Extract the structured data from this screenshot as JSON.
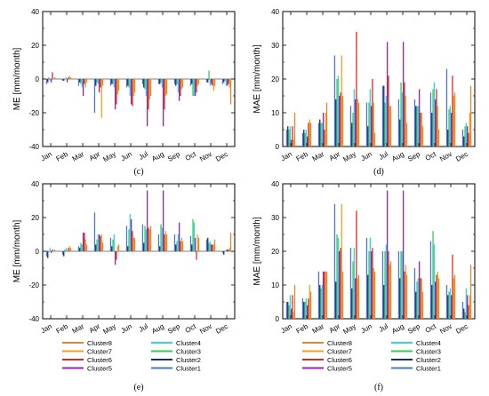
{
  "months": [
    "Jan",
    "Feb",
    "Mar",
    "Apr",
    "May",
    "Jun",
    "Jul",
    "Aug",
    "Sep",
    "Oct",
    "Nov",
    "Dec"
  ],
  "clusters": [
    {
      "name": "Cluster1",
      "color": "#4a78c4"
    },
    {
      "name": "Cluster2",
      "color": "#1a2a7a"
    },
    {
      "name": "Cluster3",
      "color": "#33cc55"
    },
    {
      "name": "Cluster4",
      "color": "#33d6d6"
    },
    {
      "name": "Cluster5",
      "color": "#9b1fc4"
    },
    {
      "name": "Cluster6",
      "color": "#d42a2a"
    },
    {
      "name": "Cluster7",
      "color": "#f0a020"
    },
    {
      "name": "Cluster8",
      "color": "#e08a30"
    }
  ],
  "panels": [
    {
      "label": "(c)",
      "ylabel": "ME [mm/month]"
    },
    {
      "label": "(d)",
      "ylabel": "MAE [mm/month]"
    },
    {
      "label": "(e)",
      "ylabel": "ME [mm/month]"
    },
    {
      "label": "(f)",
      "ylabel": "MAE [mm/month]"
    }
  ],
  "legend": {
    "left": [
      "Cluster8",
      "Cluster7",
      "Cluster6",
      "Cluster5"
    ],
    "right": [
      "Cluster4",
      "Cluster3",
      "Cluster2",
      "Cluster1"
    ]
  },
  "chart_data": [
    {
      "type": "bar",
      "ylim": [
        -40,
        40
      ],
      "yticks": [
        -40,
        -20,
        0,
        20,
        40
      ],
      "series": [
        {
          "name": "Cluster1",
          "values": [
            -3,
            -1,
            -4,
            -20,
            -4,
            -5,
            -3,
            -3,
            -3,
            -4,
            -2,
            -3
          ]
        },
        {
          "name": "Cluster2",
          "values": [
            -2,
            -1,
            -2,
            -4,
            -3,
            -4,
            -5,
            -3,
            -4,
            -3,
            -2,
            -2
          ]
        },
        {
          "name": "Cluster3",
          "values": [
            1,
            0,
            -3,
            -2,
            -3,
            -5,
            -6,
            -2,
            -3,
            -10,
            5,
            -1
          ]
        },
        {
          "name": "Cluster4",
          "values": [
            -1,
            1,
            -5,
            -3,
            -5,
            -10,
            -10,
            -5,
            -8,
            -10,
            -4,
            -4
          ]
        },
        {
          "name": "Cluster5",
          "values": [
            -2,
            -2,
            -10,
            -8,
            -18,
            -15,
            -28,
            -28,
            -13,
            -10,
            -3,
            -4
          ]
        },
        {
          "name": "Cluster6",
          "values": [
            4,
            1,
            -3,
            -5,
            -15,
            -16,
            -18,
            -18,
            -10,
            -8,
            -4,
            -3
          ]
        },
        {
          "name": "Cluster7",
          "values": [
            0,
            2,
            -5,
            -23,
            -9,
            -10,
            -12,
            -10,
            -6,
            -4,
            -7,
            -5
          ]
        },
        {
          "name": "Cluster8",
          "values": [
            1,
            1,
            -2,
            -4,
            -7,
            -8,
            -10,
            -9,
            -5,
            -3,
            -4,
            -15
          ]
        }
      ]
    },
    {
      "type": "bar",
      "ylim": [
        0,
        40
      ],
      "yticks": [
        0,
        10,
        20,
        30,
        40
      ],
      "series": [
        {
          "name": "Cluster1",
          "values": [
            5,
            4,
            7,
            27,
            12,
            13,
            18,
            14,
            14,
            16,
            23,
            5
          ]
        },
        {
          "name": "Cluster2",
          "values": [
            6,
            5,
            8,
            14,
            7,
            6,
            18,
            8,
            12,
            10,
            5,
            3
          ]
        },
        {
          "name": "Cluster3",
          "values": [
            5,
            4,
            7,
            20,
            10,
            13,
            13,
            19,
            12,
            17,
            11,
            6
          ]
        },
        {
          "name": "Cluster4",
          "values": [
            6,
            5,
            7,
            21,
            17,
            17,
            15,
            16,
            12,
            19,
            12,
            7
          ]
        },
        {
          "name": "Cluster5",
          "values": [
            2,
            3,
            10,
            15,
            14,
            12,
            31,
            31,
            17,
            14,
            10,
            6
          ]
        },
        {
          "name": "Cluster6",
          "values": [
            6,
            7,
            5,
            16,
            34,
            20,
            21,
            19,
            10,
            17,
            21,
            4
          ]
        },
        {
          "name": "Cluster7",
          "values": [
            2,
            8,
            10,
            27,
            14,
            13,
            12,
            15,
            10,
            12,
            15,
            10
          ]
        },
        {
          "name": "Cluster8",
          "values": [
            10,
            7,
            13,
            15,
            13,
            4,
            12,
            7,
            6,
            5,
            16,
            18
          ]
        }
      ]
    },
    {
      "type": "bar",
      "ylim": [
        -40,
        40
      ],
      "yticks": [
        -40,
        -20,
        0,
        20,
        40
      ],
      "series": [
        {
          "name": "Cluster1",
          "values": [
            -3,
            -2,
            3,
            23,
            8,
            15,
            16,
            10,
            10,
            9,
            7,
            -1
          ]
        },
        {
          "name": "Cluster2",
          "values": [
            -4,
            -3,
            2,
            4,
            3,
            3,
            5,
            3,
            4,
            4,
            8,
            -2
          ]
        },
        {
          "name": "Cluster3",
          "values": [
            0,
            1,
            5,
            7,
            7,
            13,
            15,
            16,
            6,
            19,
            5,
            0
          ]
        },
        {
          "name": "Cluster4",
          "values": [
            2,
            2,
            4,
            10,
            10,
            22,
            13,
            14,
            10,
            17,
            6,
            1
          ]
        },
        {
          "name": "Cluster5",
          "values": [
            -1,
            0,
            11,
            10,
            -8,
            19,
            36,
            36,
            17,
            8,
            4,
            1
          ]
        },
        {
          "name": "Cluster6",
          "values": [
            1,
            2,
            11,
            9,
            -5,
            12,
            14,
            10,
            6,
            -5,
            4,
            1
          ]
        },
        {
          "name": "Cluster7",
          "values": [
            0,
            3,
            7,
            10,
            3,
            8,
            13,
            12,
            8,
            10,
            4,
            2
          ]
        },
        {
          "name": "Cluster8",
          "values": [
            1,
            2,
            4,
            5,
            4,
            8,
            15,
            10,
            6,
            8,
            7,
            11
          ]
        }
      ]
    },
    {
      "type": "bar",
      "ylim": [
        0,
        40
      ],
      "yticks": [
        0,
        10,
        20,
        30,
        40
      ],
      "series": [
        {
          "name": "Cluster1",
          "values": [
            5,
            6,
            14,
            34,
            21,
            24,
            20,
            20,
            15,
            23,
            10,
            5
          ]
        },
        {
          "name": "Cluster2",
          "values": [
            5,
            5,
            10,
            11,
            9,
            13,
            10,
            12,
            8,
            10,
            7,
            3
          ]
        },
        {
          "name": "Cluster3",
          "values": [
            4,
            5,
            9,
            25,
            17,
            20,
            20,
            20,
            11,
            26,
            8,
            2
          ]
        },
        {
          "name": "Cluster4",
          "values": [
            7,
            6,
            10,
            24,
            21,
            24,
            22,
            20,
            12,
            22,
            9,
            9
          ]
        },
        {
          "name": "Cluster5",
          "values": [
            3,
            4,
            14,
            20,
            12,
            20,
            38,
            38,
            17,
            11,
            7,
            7
          ]
        },
        {
          "name": "Cluster6",
          "values": [
            7,
            6,
            14,
            21,
            32,
            21,
            20,
            14,
            12,
            13,
            19,
            4
          ]
        },
        {
          "name": "Cluster7",
          "values": [
            2,
            10,
            14,
            34,
            12,
            15,
            16,
            16,
            12,
            14,
            12,
            7
          ]
        },
        {
          "name": "Cluster8",
          "values": [
            10,
            8,
            14,
            14,
            13,
            14,
            17,
            13,
            8,
            12,
            13,
            16
          ]
        }
      ]
    }
  ]
}
